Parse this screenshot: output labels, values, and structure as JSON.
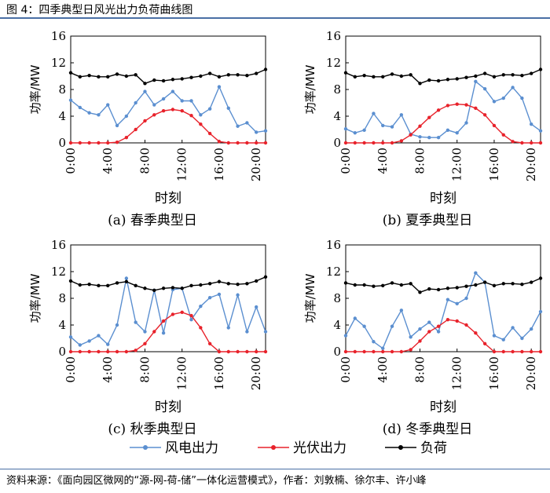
{
  "figure_title": "图 4：四季典型日风光出力负荷曲线图",
  "source": "资料来源：《面向园区微网的“源-网-荷-储”一体化运营模式》，作者：刘敦楠、徐尔丰、许小峰",
  "legend": {
    "wind": "风电出力",
    "pv": "光伏出力",
    "load": "负荷"
  },
  "colors": {
    "wind": "#5b8fd0",
    "pv": "#e8222b",
    "load": "#000000",
    "rule": "#4a6fa5"
  },
  "chart_data": [
    {
      "type": "line",
      "caption": "(a) 春季典型日",
      "xlabel": "时刻",
      "ylabel": "功率/MW",
      "xlim": [
        0,
        21
      ],
      "ylim": [
        0,
        16
      ],
      "xticks": [
        0,
        4,
        8,
        12,
        16,
        20
      ],
      "xtick_labels": [
        "0:00",
        "4:00",
        "8:00",
        "12:00",
        "16:00",
        "20:00"
      ],
      "yticks": [
        0,
        4,
        8,
        12,
        16
      ],
      "ytick_labels": [
        "0",
        "4",
        "8",
        "12",
        "16"
      ],
      "series": [
        {
          "name": "风电出力",
          "key": "wind",
          "x": [
            0,
            1,
            2,
            3,
            4,
            5,
            6,
            7,
            8,
            9,
            10,
            11,
            12,
            13,
            14,
            15,
            16,
            17,
            18,
            19,
            20,
            21
          ],
          "values": [
            6.4,
            5.3,
            4.5,
            4.2,
            5.7,
            2.6,
            4.0,
            6.0,
            7.7,
            5.7,
            6.6,
            7.7,
            6.3,
            6.3,
            4.2,
            5.1,
            8.4,
            5.2,
            2.5,
            3.0,
            1.6,
            1.8
          ]
        },
        {
          "name": "光伏出力",
          "key": "pv",
          "x": [
            0,
            1,
            2,
            3,
            4,
            5,
            6,
            7,
            8,
            9,
            10,
            11,
            12,
            13,
            14,
            15,
            16,
            17,
            18,
            19,
            20,
            21
          ],
          "values": [
            0,
            0,
            0,
            0,
            0,
            0.1,
            0.8,
            2.0,
            3.3,
            4.2,
            4.8,
            5.0,
            4.8,
            4.1,
            2.8,
            1.4,
            0.2,
            0,
            0,
            0,
            0,
            0
          ]
        },
        {
          "name": "负荷",
          "key": "load",
          "x": [
            0,
            1,
            2,
            3,
            4,
            5,
            6,
            7,
            8,
            9,
            10,
            11,
            12,
            13,
            14,
            15,
            16,
            17,
            18,
            19,
            20,
            21
          ],
          "values": [
            10.5,
            9.9,
            10.1,
            9.9,
            9.9,
            10.3,
            10.0,
            10.2,
            8.9,
            9.4,
            9.3,
            9.5,
            9.6,
            9.8,
            10.0,
            10.4,
            9.9,
            10.2,
            10.2,
            10.1,
            10.4,
            11.0
          ]
        }
      ]
    },
    {
      "type": "line",
      "caption": "(b) 夏季典型日",
      "xlabel": "时刻",
      "ylabel": "功率/MW",
      "xlim": [
        0,
        21
      ],
      "ylim": [
        0,
        16
      ],
      "xticks": [
        0,
        4,
        8,
        12,
        16,
        20
      ],
      "xtick_labels": [
        "0:00",
        "4:00",
        "8:00",
        "12:00",
        "16:00",
        "20:00"
      ],
      "yticks": [
        0,
        4,
        8,
        12,
        16
      ],
      "ytick_labels": [
        "0",
        "4",
        "8",
        "12",
        "16"
      ],
      "series": [
        {
          "name": "风电出力",
          "key": "wind",
          "x": [
            0,
            1,
            2,
            3,
            4,
            5,
            6,
            7,
            8,
            9,
            10,
            11,
            12,
            13,
            14,
            15,
            16,
            17,
            18,
            19,
            20,
            21
          ],
          "values": [
            2.1,
            1.5,
            1.9,
            4.4,
            2.6,
            2.4,
            4.2,
            1.3,
            0.9,
            0.8,
            0.8,
            1.9,
            1.5,
            3.0,
            9.2,
            8.1,
            6.2,
            6.7,
            8.3,
            6.7,
            2.8,
            1.8
          ]
        },
        {
          "name": "光伏出力",
          "key": "pv",
          "x": [
            0,
            1,
            2,
            3,
            4,
            5,
            6,
            7,
            8,
            9,
            10,
            11,
            12,
            13,
            14,
            15,
            16,
            17,
            18,
            19,
            20,
            21
          ],
          "values": [
            0,
            0,
            0,
            0,
            0,
            0,
            0.3,
            1.2,
            2.5,
            3.8,
            4.9,
            5.6,
            5.8,
            5.7,
            5.2,
            4.2,
            2.6,
            1.2,
            0.2,
            0,
            0,
            0
          ]
        },
        {
          "name": "负荷",
          "key": "load",
          "x": [
            0,
            1,
            2,
            3,
            4,
            5,
            6,
            7,
            8,
            9,
            10,
            11,
            12,
            13,
            14,
            15,
            16,
            17,
            18,
            19,
            20,
            21
          ],
          "values": [
            10.5,
            9.9,
            10.1,
            9.9,
            9.9,
            10.3,
            10.0,
            10.2,
            8.9,
            9.4,
            9.3,
            9.5,
            9.6,
            9.8,
            10.0,
            10.4,
            9.9,
            10.2,
            10.2,
            10.1,
            10.4,
            11.0
          ]
        }
      ]
    },
    {
      "type": "line",
      "caption": "(c) 秋季典型日",
      "xlabel": "时刻",
      "ylabel": "功率/MW",
      "xlim": [
        0,
        21
      ],
      "ylim": [
        0,
        16
      ],
      "xticks": [
        0,
        4,
        8,
        12,
        16,
        20
      ],
      "xtick_labels": [
        "0:00",
        "4:00",
        "8:00",
        "12:00",
        "16:00",
        "20:00"
      ],
      "yticks": [
        0,
        4,
        8,
        12,
        16
      ],
      "ytick_labels": [
        "0",
        "4",
        "8",
        "12",
        "16"
      ],
      "series": [
        {
          "name": "风电出力",
          "key": "wind",
          "x": [
            0,
            1,
            2,
            3,
            4,
            5,
            6,
            7,
            8,
            9,
            10,
            11,
            12,
            13,
            14,
            15,
            16,
            17,
            18,
            19,
            20,
            21
          ],
          "values": [
            2.2,
            1.0,
            1.6,
            2.4,
            1.1,
            4.0,
            11.0,
            4.4,
            3.0,
            9.2,
            2.8,
            9.3,
            9.5,
            4.8,
            6.8,
            8.1,
            8.6,
            3.6,
            8.5,
            3.0,
            6.7,
            3.0
          ]
        },
        {
          "name": "光伏出力",
          "key": "pv",
          "x": [
            0,
            1,
            2,
            3,
            4,
            5,
            6,
            7,
            8,
            9,
            10,
            11,
            12,
            13,
            14,
            15,
            16,
            17,
            18,
            19,
            20,
            21
          ],
          "values": [
            0,
            0,
            0,
            0,
            0,
            0,
            0,
            0.2,
            1.2,
            3.0,
            4.6,
            5.6,
            5.9,
            5.4,
            3.6,
            1.2,
            0,
            0,
            0,
            0,
            0,
            0
          ]
        },
        {
          "name": "负荷",
          "key": "load",
          "x": [
            0,
            1,
            2,
            3,
            4,
            5,
            6,
            7,
            8,
            9,
            10,
            11,
            12,
            13,
            14,
            15,
            16,
            17,
            18,
            19,
            20,
            21
          ],
          "values": [
            10.6,
            10.0,
            10.1,
            9.9,
            9.9,
            10.3,
            10.5,
            9.9,
            9.5,
            9.2,
            9.5,
            9.6,
            9.5,
            9.9,
            10.0,
            10.2,
            10.5,
            10.2,
            10.1,
            10.2,
            10.6,
            11.2
          ]
        }
      ]
    },
    {
      "type": "line",
      "caption": "(d) 冬季典型日",
      "xlabel": "时刻",
      "ylabel": "功率/MW",
      "xlim": [
        0,
        21
      ],
      "ylim": [
        0,
        16
      ],
      "xticks": [
        0,
        4,
        8,
        12,
        16,
        20
      ],
      "xtick_labels": [
        "0:00",
        "4:00",
        "8:00",
        "12:00",
        "16:00",
        "20:00"
      ],
      "yticks": [
        0,
        4,
        8,
        12,
        16
      ],
      "ytick_labels": [
        "0",
        "4",
        "8",
        "12",
        "16"
      ],
      "series": [
        {
          "name": "风电出力",
          "key": "wind",
          "x": [
            0,
            1,
            2,
            3,
            4,
            5,
            6,
            7,
            8,
            9,
            10,
            11,
            12,
            13,
            14,
            15,
            16,
            17,
            18,
            19,
            20,
            21
          ],
          "values": [
            2.4,
            5.0,
            3.8,
            1.5,
            0.5,
            3.8,
            6.2,
            2.2,
            3.4,
            4.4,
            3.0,
            7.8,
            7.2,
            8.0,
            11.8,
            10.4,
            2.4,
            1.8,
            3.6,
            2.0,
            3.4,
            6.0
          ]
        },
        {
          "name": "光伏出力",
          "key": "pv",
          "x": [
            0,
            1,
            2,
            3,
            4,
            5,
            6,
            7,
            8,
            9,
            10,
            11,
            12,
            13,
            14,
            15,
            16,
            17,
            18,
            19,
            20,
            21
          ],
          "values": [
            0,
            0,
            0,
            0,
            0,
            0,
            0,
            0.3,
            1.6,
            3.0,
            3.8,
            4.8,
            4.6,
            4.0,
            2.8,
            1.2,
            0,
            0,
            0,
            0,
            0,
            0
          ]
        },
        {
          "name": "负荷",
          "key": "load",
          "x": [
            0,
            1,
            2,
            3,
            4,
            5,
            6,
            7,
            8,
            9,
            10,
            11,
            12,
            13,
            14,
            15,
            16,
            17,
            18,
            19,
            20,
            21
          ],
          "values": [
            10.3,
            10.0,
            10.0,
            9.8,
            9.9,
            10.3,
            10.0,
            10.2,
            8.9,
            9.4,
            9.3,
            9.5,
            9.6,
            9.8,
            10.0,
            10.4,
            9.9,
            10.2,
            10.2,
            10.1,
            10.4,
            11.0
          ]
        }
      ]
    }
  ]
}
